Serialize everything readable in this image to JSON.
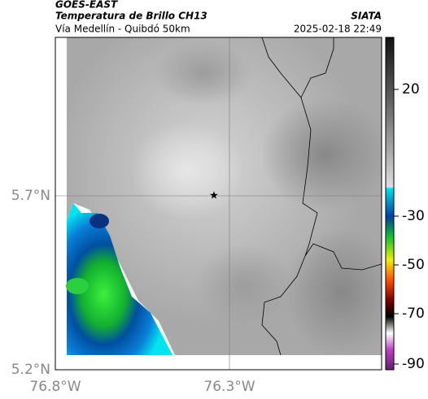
{
  "header": {
    "source": "GOES-EAST",
    "title": "Temperatura de Brillo CH13",
    "subtitle": "Vía Medellín - Quibdó 50km",
    "credit": "SIATA",
    "timestamp": "2025-02-18 22:49"
  },
  "map": {
    "lat_ticks": [
      "5.7°N",
      "5.2°N"
    ],
    "lon_ticks": [
      "76.8°W",
      "76.3°W"
    ]
  },
  "colorbar": {
    "ticks": [
      "20",
      "-30",
      "-50",
      "-70",
      "-90"
    ]
  }
}
